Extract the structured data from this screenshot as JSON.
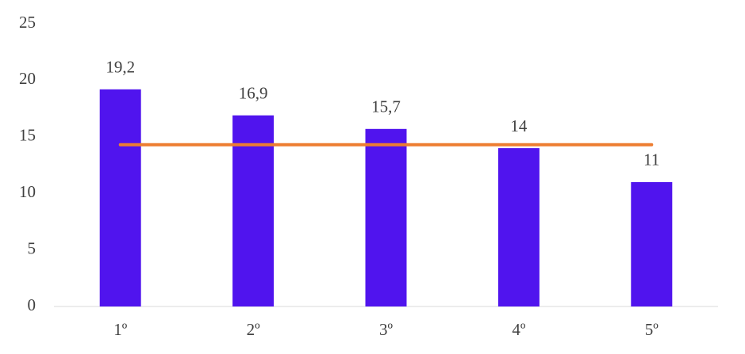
{
  "chart_data": {
    "type": "bar",
    "categories": [
      "1º",
      "2º",
      "3º",
      "4º",
      "5º"
    ],
    "series": [
      {
        "type": "bar",
        "color": "#5014ee",
        "values": [
          19.2,
          16.9,
          15.7,
          14,
          11
        ],
        "value_labels": [
          "19,2",
          "16,9",
          "15,7",
          "14",
          "11"
        ]
      },
      {
        "type": "line",
        "color": "#ed7d31",
        "values": [
          14.3,
          14.3,
          14.3,
          14.3,
          14.3
        ]
      }
    ],
    "ylim": [
      0,
      25
    ],
    "yticks": [
      0,
      5,
      10,
      15,
      20,
      25
    ],
    "grid": false
  }
}
